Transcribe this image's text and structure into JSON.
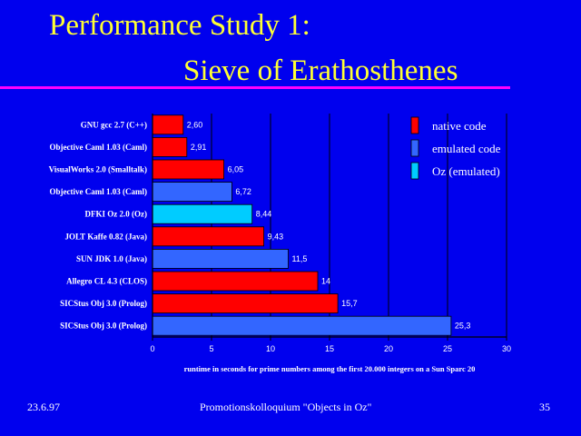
{
  "slide": {
    "title_line1": "Performance Study 1:",
    "title_line2": "Sieve of Erathosthenes",
    "footer_date": "23.6.97",
    "footer_center": "Promotionskolloquium \"Objects in Oz\"",
    "footer_page": "35"
  },
  "colors": {
    "background": "#0000ee",
    "title": "#ffff33",
    "rule": "#ff00ff",
    "native": "#ff0000",
    "emulated": "#3366ff",
    "oz": "#00ccff"
  },
  "chart_data": {
    "type": "bar",
    "orientation": "horizontal",
    "categories": [
      "GNU gcc 2.7 (C++)",
      "Objective Caml 1.03 (Caml)",
      "VisualWorks 2.0 (Smalltalk)",
      "Objective Caml 1.03 (Caml)",
      "DFKI Oz 2.0 (Oz)",
      "JOLT Kaffe 0.82 (Java)",
      "SUN JDK 1.0 (Java)",
      "Allegro CL 4.3 (CLOS)",
      "SICStus Obj 3.0 (Prolog)",
      "SICStus Obj 3.0 (Prolog)"
    ],
    "values": [
      2.6,
      2.91,
      6.05,
      6.72,
      8.44,
      9.43,
      11.5,
      14,
      15.7,
      25.3
    ],
    "value_labels": [
      "2,60",
      "2,91",
      "6,05",
      "6,72",
      "8,44",
      "9,43",
      "11,5",
      "14",
      "15,7",
      "25,3"
    ],
    "kinds": [
      "native",
      "native",
      "native",
      "emulated",
      "oz",
      "native",
      "emulated",
      "native",
      "native",
      "emulated"
    ],
    "legend": [
      {
        "key": "native",
        "label": "native code"
      },
      {
        "key": "emulated",
        "label": "emulated code"
      },
      {
        "key": "oz",
        "label": "Oz (emulated)"
      }
    ],
    "legend_position": "top-right",
    "xlim": [
      0,
      30
    ],
    "xticks": [
      0,
      5,
      10,
      15,
      20,
      25,
      30
    ],
    "xlabel": "runtime in seconds for prime numbers among the first 20.000 integers on a Sun Sparc 20",
    "ylabel": "",
    "title": "",
    "grid": {
      "vertical": true,
      "color": "#000000"
    }
  }
}
